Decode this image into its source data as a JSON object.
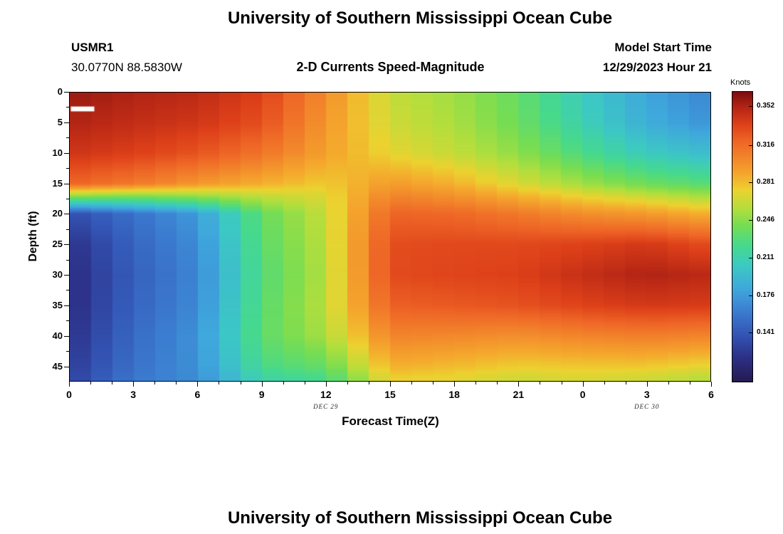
{
  "header": {
    "title": "University of Southern Mississippi Ocean Cube",
    "station_id": "USMR1",
    "coordinates": "30.0770N  88.5830W",
    "plot_subtitle": "2-D Currents Speed-Magnitude",
    "model_start_label": "Model Start Time",
    "model_start_value": "12/29/2023 Hour 21"
  },
  "next_panel": {
    "title": "University of Southern Mississippi Ocean Cube"
  },
  "chart_data": {
    "type": "heatmap",
    "title": "University of Southern Mississippi Ocean Cube",
    "subtitle": "2-D Currents Speed-Magnitude",
    "xlabel": "Forecast Time(Z)",
    "ylabel": "Depth (ft)",
    "colorbar_label": "Knots",
    "x_range_hours": [
      0,
      30
    ],
    "y_range_ft": [
      0,
      47.5
    ],
    "x_tick_hours": [
      0,
      3,
      6,
      9,
      12,
      15,
      18,
      21,
      24,
      27,
      30
    ],
    "x_tick_labels": [
      "0",
      "3",
      "6",
      "9",
      "12",
      "15",
      "18",
      "21",
      "0",
      "3",
      "6"
    ],
    "x_minor_step_hours": 1,
    "y_ticks_ft": [
      0,
      5,
      10,
      15,
      20,
      25,
      30,
      35,
      40,
      45
    ],
    "y_minor_step_ft": 2.5,
    "date_labels": [
      {
        "text": "DEC 29",
        "hour": 12
      },
      {
        "text": "DEC 30",
        "hour": 27
      }
    ],
    "value_range_knots": [
      0.0955,
      0.3655
    ],
    "colorbar_ticks": [
      0.352,
      0.316,
      0.281,
      0.246,
      0.211,
      0.176,
      0.141
    ],
    "colormap_stops": [
      [
        0.0,
        "#251a52"
      ],
      [
        0.08,
        "#2c2f85"
      ],
      [
        0.16,
        "#3354b4"
      ],
      [
        0.24,
        "#3b7bd0"
      ],
      [
        0.32,
        "#3fa8dc"
      ],
      [
        0.4,
        "#3cc9c3"
      ],
      [
        0.47,
        "#46d98d"
      ],
      [
        0.54,
        "#77dd52"
      ],
      [
        0.6,
        "#b5de3c"
      ],
      [
        0.66,
        "#ecd230"
      ],
      [
        0.71,
        "#f4ab2d"
      ],
      [
        0.77,
        "#f2872b"
      ],
      [
        0.83,
        "#ee6526"
      ],
      [
        0.89,
        "#dd4019"
      ],
      [
        0.94,
        "#b92815"
      ],
      [
        1.0,
        "#7d0d10"
      ]
    ],
    "columns": 30,
    "grid": {
      "times_hours": [
        0,
        3,
        6,
        9,
        12,
        15,
        18,
        21,
        24,
        27,
        30
      ],
      "depths_ft": [
        0,
        5,
        10,
        15,
        17,
        20,
        25,
        30,
        35,
        40,
        45,
        47
      ],
      "speeds_knots_by_time": [
        [
          0.358,
          0.352,
          0.342,
          0.32,
          0.25,
          0.135,
          0.118,
          0.114,
          0.114,
          0.118,
          0.124,
          0.128
        ],
        [
          0.352,
          0.346,
          0.336,
          0.31,
          0.245,
          0.155,
          0.148,
          0.145,
          0.147,
          0.151,
          0.155,
          0.158
        ],
        [
          0.348,
          0.341,
          0.327,
          0.296,
          0.25,
          0.176,
          0.169,
          0.166,
          0.168,
          0.172,
          0.171,
          0.169
        ],
        [
          0.336,
          0.329,
          0.312,
          0.286,
          0.262,
          0.235,
          0.231,
          0.228,
          0.23,
          0.232,
          0.224,
          0.214
        ],
        [
          0.301,
          0.296,
          0.291,
          0.276,
          0.269,
          0.263,
          0.26,
          0.258,
          0.26,
          0.255,
          0.236,
          0.224
        ],
        [
          0.262,
          0.265,
          0.272,
          0.294,
          0.305,
          0.32,
          0.33,
          0.331,
          0.322,
          0.305,
          0.286,
          0.275
        ],
        [
          0.252,
          0.255,
          0.262,
          0.285,
          0.298,
          0.318,
          0.332,
          0.334,
          0.325,
          0.303,
          0.282,
          0.272
        ],
        [
          0.235,
          0.238,
          0.248,
          0.268,
          0.285,
          0.31,
          0.332,
          0.336,
          0.328,
          0.3,
          0.276,
          0.265
        ],
        [
          0.205,
          0.21,
          0.225,
          0.252,
          0.272,
          0.3,
          0.335,
          0.345,
          0.335,
          0.305,
          0.278,
          0.268
        ],
        [
          0.181,
          0.186,
          0.205,
          0.238,
          0.262,
          0.295,
          0.34,
          0.352,
          0.34,
          0.308,
          0.278,
          0.265
        ],
        [
          0.165,
          0.172,
          0.195,
          0.228,
          0.252,
          0.285,
          0.33,
          0.348,
          0.338,
          0.305,
          0.272,
          0.258
        ]
      ]
    },
    "missing_data_marker": {
      "color": "#ffffff",
      "hour_start": 0.05,
      "hour_end": 1.15,
      "depth_top_ft": 2.3,
      "depth_bottom_ft": 3.1
    }
  }
}
